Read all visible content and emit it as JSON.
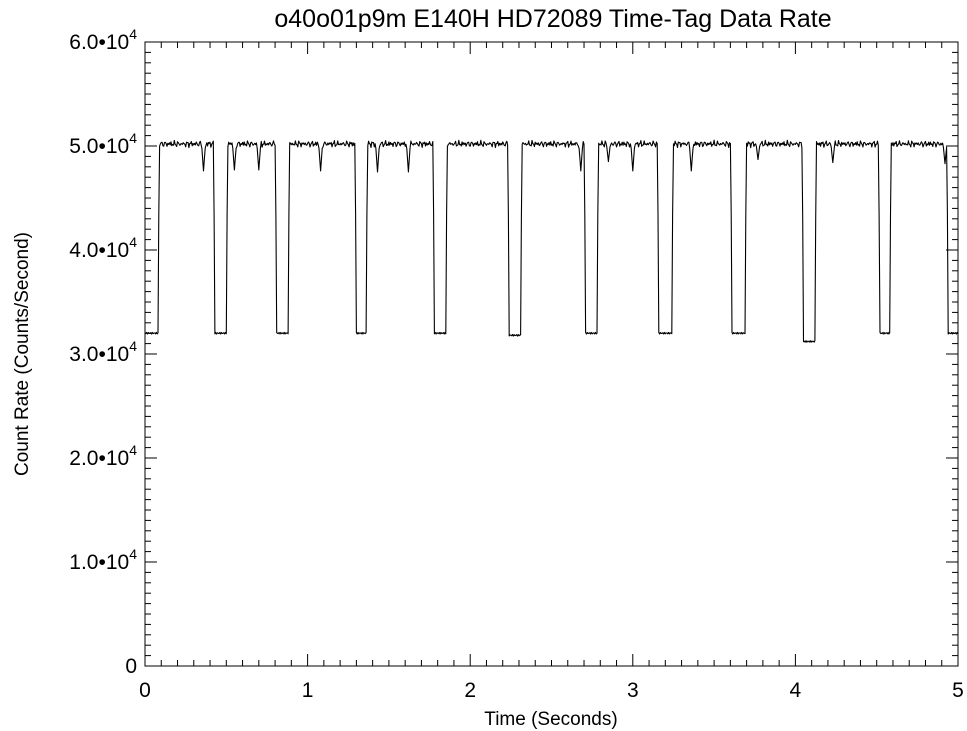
{
  "chart_data": {
    "type": "line",
    "title": "o40o01p9m  E140H  HD72089  Time-Tag Data Rate",
    "xlabel": "Time (Seconds)",
    "ylabel": "Count Rate (Counts/Second)",
    "xlim": [
      0,
      5
    ],
    "ylim": [
      0,
      60000
    ],
    "grid": false,
    "x_ticks": [
      {
        "value": 0,
        "label": "0"
      },
      {
        "value": 1,
        "label": "1"
      },
      {
        "value": 2,
        "label": "2"
      },
      {
        "value": 3,
        "label": "3"
      },
      {
        "value": 4,
        "label": "4"
      },
      {
        "value": 5,
        "label": "5"
      }
    ],
    "y_ticks": [
      {
        "value": 0,
        "mantissa": "0",
        "exponent": ""
      },
      {
        "value": 10000,
        "mantissa": "1.0•10",
        "exponent": "4"
      },
      {
        "value": 20000,
        "mantissa": "2.0•10",
        "exponent": "4"
      },
      {
        "value": 30000,
        "mantissa": "3.0•10",
        "exponent": "4"
      },
      {
        "value": 40000,
        "mantissa": "4.0•10",
        "exponent": "4"
      },
      {
        "value": 50000,
        "mantissa": "5.0•10",
        "exponent": "4"
      },
      {
        "value": 60000,
        "mantissa": "6.0•10",
        "exponent": "4"
      }
    ],
    "high_level": 50200,
    "low_level": 32000,
    "low_segments": [
      [
        0.0,
        0.08,
        32000
      ],
      [
        0.43,
        0.5,
        32000
      ],
      [
        0.81,
        0.88,
        32000
      ],
      [
        1.3,
        1.36,
        32000
      ],
      [
        1.78,
        1.85,
        32000
      ],
      [
        2.24,
        2.31,
        31800
      ],
      [
        2.71,
        2.78,
        32000
      ],
      [
        3.16,
        3.24,
        32000
      ],
      [
        3.61,
        3.69,
        32000
      ],
      [
        4.05,
        4.12,
        31200
      ],
      [
        4.52,
        4.58,
        32000
      ],
      [
        4.94,
        5.0,
        32000
      ]
    ],
    "dips": [
      [
        0.36,
        47600
      ],
      [
        0.55,
        47700
      ],
      [
        0.7,
        47700
      ],
      [
        1.08,
        47600
      ],
      [
        1.43,
        47500
      ],
      [
        1.62,
        47500
      ],
      [
        2.68,
        47600
      ],
      [
        2.85,
        48500
      ],
      [
        3.0,
        47600
      ],
      [
        3.36,
        47600
      ],
      [
        3.77,
        48700
      ],
      [
        4.23,
        48400
      ],
      [
        4.92,
        48300
      ]
    ]
  }
}
